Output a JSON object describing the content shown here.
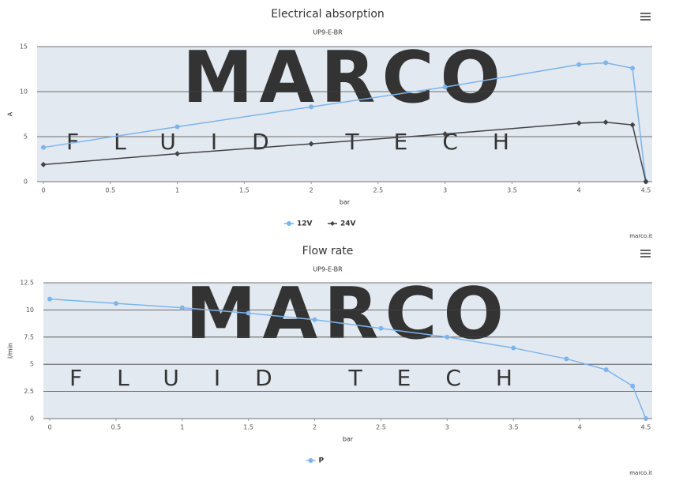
{
  "chart_data": [
    {
      "type": "line",
      "title": "Electrical absorption",
      "subtitle": "UP9-E-BR",
      "x_label": "bar",
      "y_label": "A",
      "credit": "marco.it",
      "watermark": {
        "main": "MARCO",
        "sub": "FLUID TECH"
      },
      "x": [
        0,
        1,
        2,
        3,
        4,
        4.2,
        4.4,
        4.5
      ],
      "series": [
        {
          "name": "12V",
          "color": "#7cb5ec",
          "marker": "circle",
          "values": [
            3.8,
            6.1,
            8.3,
            10.5,
            13,
            13.2,
            12.6,
            0
          ]
        },
        {
          "name": "24V",
          "color": "#434348",
          "marker": "diamond",
          "values": [
            1.9,
            3.1,
            4.2,
            5.3,
            6.5,
            6.6,
            6.3,
            0
          ]
        }
      ],
      "xlim": [
        0,
        4.5
      ],
      "xticks": [
        0,
        0.5,
        1,
        1.5,
        2,
        2.5,
        3,
        3.5,
        4,
        4.5
      ],
      "ylim": [
        0,
        15
      ],
      "yticks": [
        0,
        5,
        10,
        15
      ],
      "grid": true
    },
    {
      "type": "line",
      "title": "Flow rate",
      "subtitle": "UP9-E-BR",
      "x_label": "bar",
      "y_label": "l/min",
      "credit": "marco.it",
      "watermark": {
        "main": "MARCO",
        "sub": "FLUID TECH"
      },
      "x": [
        0,
        0.5,
        1,
        1.5,
        2,
        2.5,
        3,
        3.5,
        3.9,
        4.2,
        4.4,
        4.5
      ],
      "series": [
        {
          "name": "P",
          "color": "#7cb5ec",
          "marker": "circle",
          "values": [
            11,
            10.6,
            10.2,
            9.7,
            9.1,
            8.3,
            7.5,
            6.5,
            5.5,
            4.5,
            3,
            0
          ]
        }
      ],
      "xlim": [
        0,
        4.5
      ],
      "xticks": [
        0,
        0.5,
        1,
        1.5,
        2,
        2.5,
        3,
        3.5,
        4,
        4.5
      ],
      "ylim": [
        0,
        12.5
      ],
      "yticks": [
        0,
        2.5,
        5,
        7.5,
        10,
        12.5
      ],
      "grid": true
    }
  ]
}
